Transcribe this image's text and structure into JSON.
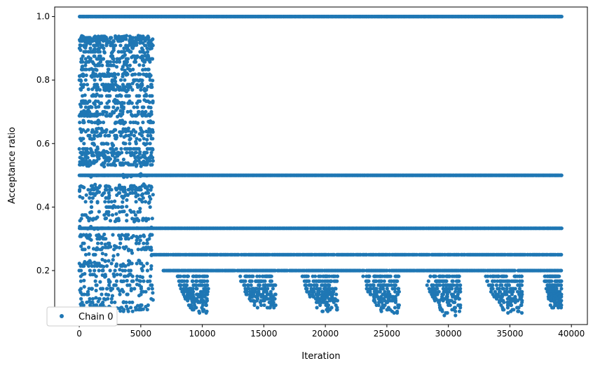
{
  "chart_data": {
    "type": "scatter",
    "title": "",
    "xlabel": "Iteration",
    "ylabel": "Acceptance ratio",
    "xlim": [
      -2000,
      41300
    ],
    "ylim": [
      0.03,
      1.03
    ],
    "xticks": [
      0,
      5000,
      10000,
      15000,
      20000,
      25000,
      30000,
      35000,
      40000
    ],
    "xtick_labels": [
      "0",
      "5000",
      "10000",
      "15000",
      "20000",
      "25000",
      "30000",
      "35000",
      "40000"
    ],
    "yticks": [
      0.2,
      0.4,
      0.6,
      0.8,
      1.0
    ],
    "ytick_labels": [
      "0.2",
      "0.4",
      "0.6",
      "0.8",
      "1.0"
    ],
    "grid": false,
    "legend": {
      "position": "lower-left",
      "entries": [
        "Chain 0"
      ]
    },
    "series": [
      {
        "name": "Chain 0",
        "color": "#1f77b4",
        "marker": "circle",
        "description_of_bands": "dense horizontal bands of points",
        "bands": [
          {
            "y": 1.0,
            "x_start": 0,
            "x_end": 39200
          },
          {
            "y": 0.5,
            "x_start": 0,
            "x_end": 39200
          },
          {
            "y": 0.333,
            "x_start": 0,
            "x_end": 39200
          },
          {
            "y": 0.25,
            "x_start": 6000,
            "x_end": 39200
          },
          {
            "y": 0.2,
            "x_start": 6800,
            "x_end": 39200
          }
        ],
        "early_phase": {
          "x_start": 0,
          "x_end": 6000,
          "y_min": 0.08,
          "y_max": 0.94
        },
        "low_clusters": [
          {
            "x_start": 7500,
            "x_end": 10500,
            "y_min": 0.06,
            "y_max": 0.2
          },
          {
            "x_start": 12500,
            "x_end": 16000,
            "y_min": 0.08,
            "y_max": 0.2
          },
          {
            "x_start": 17500,
            "x_end": 21000,
            "y_min": 0.07,
            "y_max": 0.2
          },
          {
            "x_start": 22500,
            "x_end": 26000,
            "y_min": 0.06,
            "y_max": 0.2
          },
          {
            "x_start": 27500,
            "x_end": 31000,
            "y_min": 0.05,
            "y_max": 0.2
          },
          {
            "x_start": 32500,
            "x_end": 36000,
            "y_min": 0.06,
            "y_max": 0.2
          },
          {
            "x_start": 37500,
            "x_end": 39200,
            "y_min": 0.08,
            "y_max": 0.2
          }
        ]
      }
    ]
  }
}
